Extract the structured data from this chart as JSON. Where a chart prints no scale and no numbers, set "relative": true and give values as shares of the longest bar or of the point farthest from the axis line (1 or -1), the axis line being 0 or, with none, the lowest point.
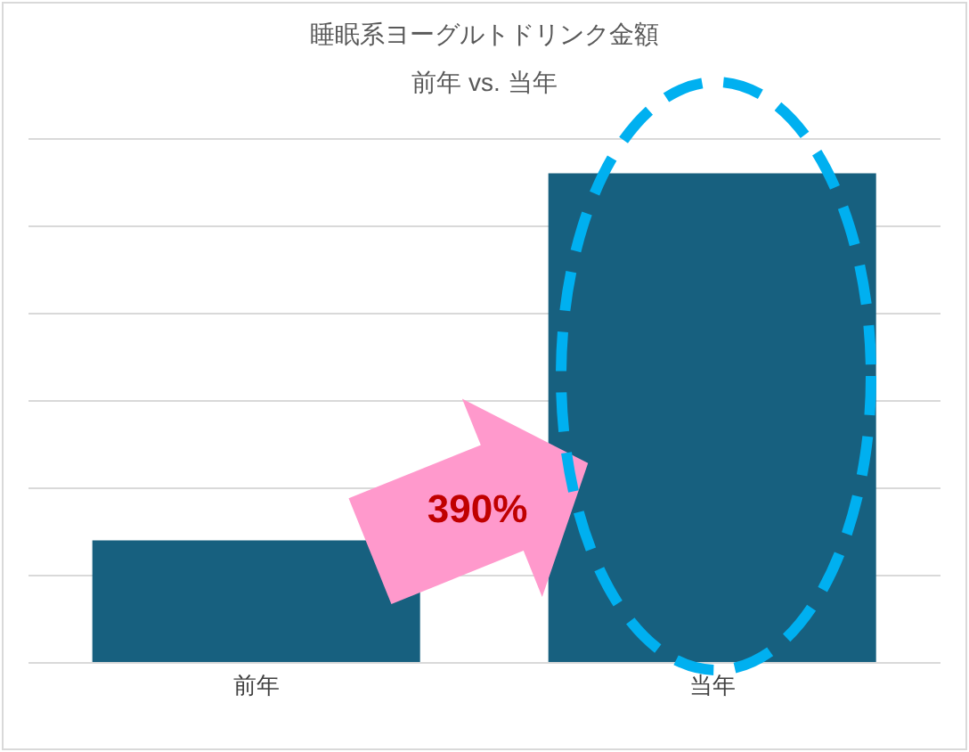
{
  "chart_data": {
    "type": "bar",
    "title": "睡眠系ヨーグルトドリンク金額",
    "subtitle": "前年 vs. 当年",
    "categories": [
      "前年",
      "当年"
    ],
    "values": [
      0.25,
      1
    ],
    "color": "#17607f",
    "relative": true,
    "grid": "y",
    "annotations": [
      "390%"
    ]
  }
}
